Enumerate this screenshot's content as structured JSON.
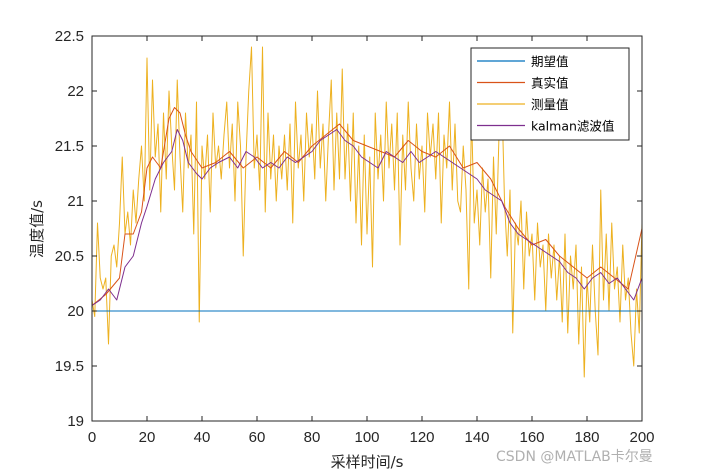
{
  "chart_data": {
    "type": "line",
    "xlabel": "采样时间/s",
    "ylabel": "温度值/s",
    "xlim": [
      0,
      200
    ],
    "ylim": [
      19,
      22.5
    ],
    "xticks": [
      0,
      20,
      40,
      60,
      80,
      100,
      120,
      140,
      160,
      180,
      200
    ],
    "yticks": [
      19,
      19.5,
      20,
      20.5,
      21,
      21.5,
      22,
      22.5
    ],
    "grid": false,
    "legend_position": "top-right",
    "series": [
      {
        "name": "期望值",
        "color": "#0072BD",
        "points": [
          [
            0,
            20
          ],
          [
            200,
            20
          ]
        ]
      },
      {
        "name": "真实值",
        "color": "#D95319",
        "points": [
          [
            0,
            20.05
          ],
          [
            5,
            20.15
          ],
          [
            10,
            20.3
          ],
          [
            12,
            20.7
          ],
          [
            15,
            20.7
          ],
          [
            18,
            20.9
          ],
          [
            20,
            21.3
          ],
          [
            22,
            21.4
          ],
          [
            25,
            21.3
          ],
          [
            28,
            21.75
          ],
          [
            30,
            21.85
          ],
          [
            32,
            21.8
          ],
          [
            34,
            21.6
          ],
          [
            36,
            21.45
          ],
          [
            40,
            21.3
          ],
          [
            45,
            21.35
          ],
          [
            50,
            21.45
          ],
          [
            55,
            21.3
          ],
          [
            60,
            21.4
          ],
          [
            65,
            21.3
          ],
          [
            70,
            21.45
          ],
          [
            75,
            21.35
          ],
          [
            80,
            21.5
          ],
          [
            85,
            21.6
          ],
          [
            90,
            21.7
          ],
          [
            95,
            21.55
          ],
          [
            100,
            21.5
          ],
          [
            105,
            21.45
          ],
          [
            110,
            21.4
          ],
          [
            115,
            21.55
          ],
          [
            120,
            21.45
          ],
          [
            125,
            21.4
          ],
          [
            130,
            21.5
          ],
          [
            135,
            21.3
          ],
          [
            140,
            21.35
          ],
          [
            145,
            21.2
          ],
          [
            150,
            20.95
          ],
          [
            155,
            20.75
          ],
          [
            160,
            20.6
          ],
          [
            165,
            20.65
          ],
          [
            170,
            20.5
          ],
          [
            175,
            20.4
          ],
          [
            180,
            20.3
          ],
          [
            185,
            20.4
          ],
          [
            190,
            20.3
          ],
          [
            195,
            20.2
          ],
          [
            200,
            20.75
          ]
        ]
      },
      {
        "name": "测量值",
        "color": "#EDB120",
        "points": [
          [
            0,
            20.1
          ],
          [
            1,
            19.95
          ],
          [
            2,
            20.8
          ],
          [
            3,
            20.3
          ],
          [
            4,
            20.2
          ],
          [
            5,
            20.3
          ],
          [
            6,
            19.7
          ],
          [
            7,
            20.5
          ],
          [
            8,
            20.6
          ],
          [
            9,
            20.4
          ],
          [
            10,
            20.8
          ],
          [
            11,
            21.4
          ],
          [
            12,
            20.7
          ],
          [
            13,
            20.9
          ],
          [
            14,
            20.6
          ],
          [
            15,
            21.1
          ],
          [
            16,
            20.8
          ],
          [
            17,
            21.2
          ],
          [
            18,
            21.5
          ],
          [
            19,
            21.0
          ],
          [
            20,
            22.3
          ],
          [
            21,
            21.1
          ],
          [
            22,
            22.1
          ],
          [
            23,
            21.4
          ],
          [
            24,
            21.7
          ],
          [
            25,
            20.9
          ],
          [
            26,
            21.8
          ],
          [
            27,
            21.2
          ],
          [
            28,
            22.0
          ],
          [
            29,
            21.5
          ],
          [
            30,
            21.1
          ],
          [
            31,
            22.1
          ],
          [
            32,
            21.4
          ],
          [
            33,
            20.9
          ],
          [
            34,
            21.8
          ],
          [
            35,
            21.3
          ],
          [
            36,
            21.6
          ],
          [
            37,
            20.7
          ],
          [
            38,
            21.9
          ],
          [
            39,
            19.9
          ],
          [
            40,
            21.5
          ],
          [
            41,
            21.2
          ],
          [
            42,
            21.6
          ],
          [
            43,
            20.9
          ],
          [
            44,
            21.8
          ],
          [
            45,
            21.3
          ],
          [
            46,
            21.5
          ],
          [
            47,
            21.2
          ],
          [
            48,
            21.6
          ],
          [
            49,
            21.9
          ],
          [
            50,
            21.3
          ],
          [
            51,
            21.7
          ],
          [
            52,
            21.0
          ],
          [
            53,
            21.9
          ],
          [
            54,
            21.5
          ],
          [
            55,
            20.5
          ],
          [
            56,
            21.4
          ],
          [
            57,
            22.0
          ],
          [
            58,
            22.4
          ],
          [
            59,
            21.3
          ],
          [
            60,
            21.6
          ],
          [
            61,
            21.1
          ],
          [
            62,
            22.4
          ],
          [
            63,
            20.9
          ],
          [
            64,
            21.8
          ],
          [
            65,
            21.2
          ],
          [
            66,
            21.6
          ],
          [
            67,
            21.0
          ],
          [
            68,
            21.5
          ],
          [
            69,
            21.2
          ],
          [
            70,
            21.6
          ],
          [
            71,
            21.1
          ],
          [
            72,
            21.7
          ],
          [
            73,
            20.8
          ],
          [
            74,
            21.9
          ],
          [
            75,
            21.3
          ],
          [
            76,
            21.6
          ],
          [
            77,
            21.0
          ],
          [
            78,
            21.8
          ],
          [
            79,
            21.4
          ],
          [
            80,
            21.7
          ],
          [
            81,
            21.2
          ],
          [
            82,
            22.0
          ],
          [
            83,
            21.3
          ],
          [
            84,
            21.7
          ],
          [
            85,
            21.0
          ],
          [
            86,
            21.6
          ],
          [
            87,
            22.1
          ],
          [
            88,
            21.1
          ],
          [
            89,
            21.8
          ],
          [
            90,
            21.2
          ],
          [
            91,
            22.2
          ],
          [
            92,
            21.2
          ],
          [
            93,
            21.7
          ],
          [
            94,
            21.0
          ],
          [
            95,
            21.8
          ],
          [
            96,
            20.8
          ],
          [
            97,
            21.5
          ],
          [
            98,
            20.6
          ],
          [
            99,
            21.6
          ],
          [
            100,
            20.7
          ],
          [
            101,
            21.4
          ],
          [
            102,
            20.4
          ],
          [
            103,
            21.8
          ],
          [
            104,
            21.2
          ],
          [
            105,
            21.6
          ],
          [
            106,
            21.0
          ],
          [
            107,
            21.9
          ],
          [
            108,
            21.3
          ],
          [
            109,
            21.7
          ],
          [
            110,
            21.1
          ],
          [
            111,
            21.8
          ],
          [
            112,
            20.6
          ],
          [
            113,
            21.6
          ],
          [
            114,
            21.1
          ],
          [
            115,
            21.9
          ],
          [
            116,
            21.3
          ],
          [
            117,
            21.0
          ],
          [
            118,
            21.7
          ],
          [
            119,
            21.2
          ],
          [
            120,
            21.5
          ],
          [
            121,
            20.9
          ],
          [
            122,
            21.8
          ],
          [
            123,
            21.4
          ],
          [
            124,
            21.7
          ],
          [
            125,
            21.2
          ],
          [
            126,
            21.8
          ],
          [
            127,
            20.8
          ],
          [
            128,
            21.6
          ],
          [
            129,
            21.3
          ],
          [
            130,
            21.9
          ],
          [
            131,
            21.1
          ],
          [
            132,
            21.7
          ],
          [
            133,
            21.0
          ],
          [
            134,
            20.9
          ],
          [
            135,
            21.5
          ],
          [
            136,
            21.1
          ],
          [
            137,
            20.2
          ],
          [
            138,
            21.8
          ],
          [
            139,
            20.8
          ],
          [
            140,
            21.1
          ],
          [
            141,
            20.6
          ],
          [
            142,
            21.3
          ],
          [
            143,
            20.9
          ],
          [
            144,
            21.2
          ],
          [
            145,
            20.3
          ],
          [
            146,
            21.4
          ],
          [
            147,
            20.7
          ],
          [
            148,
            21.6
          ],
          [
            149,
            22.0
          ],
          [
            150,
            21.0
          ],
          [
            151,
            20.5
          ],
          [
            152,
            21.1
          ],
          [
            153,
            19.8
          ],
          [
            154,
            20.8
          ],
          [
            155,
            20.6
          ],
          [
            156,
            21.0
          ],
          [
            157,
            20.2
          ],
          [
            158,
            20.9
          ],
          [
            159,
            20.5
          ],
          [
            160,
            20.7
          ],
          [
            161,
            20.1
          ],
          [
            162,
            20.8
          ],
          [
            163,
            20.4
          ],
          [
            164,
            20.6
          ],
          [
            165,
            20.0
          ],
          [
            166,
            20.7
          ],
          [
            167,
            20.3
          ],
          [
            168,
            20.6
          ],
          [
            169,
            20.1
          ],
          [
            170,
            20.5
          ],
          [
            171,
            19.9
          ],
          [
            172,
            20.7
          ],
          [
            173,
            19.8
          ],
          [
            174,
            20.5
          ],
          [
            175,
            20.2
          ],
          [
            176,
            20.6
          ],
          [
            177,
            19.7
          ],
          [
            178,
            20.4
          ],
          [
            179,
            19.4
          ],
          [
            180,
            20.3
          ],
          [
            181,
            19.9
          ],
          [
            182,
            20.6
          ],
          [
            183,
            20.0
          ],
          [
            184,
            19.6
          ],
          [
            185,
            21.1
          ],
          [
            186,
            20.1
          ],
          [
            187,
            20.7
          ],
          [
            188,
            20.0
          ],
          [
            189,
            20.8
          ],
          [
            190,
            20.2
          ],
          [
            191,
            20.4
          ],
          [
            192,
            19.9
          ],
          [
            193,
            20.6
          ],
          [
            194,
            20.1
          ],
          [
            195,
            20.3
          ],
          [
            196,
            19.8
          ],
          [
            197,
            19.5
          ],
          [
            198,
            20.2
          ],
          [
            199,
            19.8
          ],
          [
            200,
            20.8
          ]
        ]
      },
      {
        "name": "kalman滤波值",
        "color": "#7E2F8E",
        "points": [
          [
            0,
            20.05
          ],
          [
            3,
            20.1
          ],
          [
            6,
            20.2
          ],
          [
            9,
            20.1
          ],
          [
            12,
            20.4
          ],
          [
            15,
            20.5
          ],
          [
            18,
            20.8
          ],
          [
            20,
            20.95
          ],
          [
            23,
            21.2
          ],
          [
            26,
            21.35
          ],
          [
            29,
            21.45
          ],
          [
            31,
            21.65
          ],
          [
            33,
            21.55
          ],
          [
            35,
            21.35
          ],
          [
            38,
            21.25
          ],
          [
            40,
            21.2
          ],
          [
            43,
            21.3
          ],
          [
            46,
            21.35
          ],
          [
            50,
            21.4
          ],
          [
            53,
            21.3
          ],
          [
            56,
            21.45
          ],
          [
            59,
            21.4
          ],
          [
            62,
            21.3
          ],
          [
            65,
            21.35
          ],
          [
            68,
            21.3
          ],
          [
            71,
            21.4
          ],
          [
            74,
            21.35
          ],
          [
            77,
            21.4
          ],
          [
            80,
            21.45
          ],
          [
            83,
            21.55
          ],
          [
            86,
            21.6
          ],
          [
            89,
            21.65
          ],
          [
            92,
            21.55
          ],
          [
            95,
            21.5
          ],
          [
            98,
            21.4
          ],
          [
            101,
            21.35
          ],
          [
            104,
            21.3
          ],
          [
            107,
            21.45
          ],
          [
            110,
            21.4
          ],
          [
            113,
            21.35
          ],
          [
            116,
            21.45
          ],
          [
            119,
            21.35
          ],
          [
            122,
            21.4
          ],
          [
            125,
            21.45
          ],
          [
            128,
            21.4
          ],
          [
            131,
            21.35
          ],
          [
            134,
            21.3
          ],
          [
            137,
            21.25
          ],
          [
            140,
            21.2
          ],
          [
            143,
            21.1
          ],
          [
            146,
            21.05
          ],
          [
            149,
            21.0
          ],
          [
            152,
            20.8
          ],
          [
            155,
            20.7
          ],
          [
            158,
            20.65
          ],
          [
            161,
            20.6
          ],
          [
            164,
            20.55
          ],
          [
            167,
            20.5
          ],
          [
            170,
            20.45
          ],
          [
            173,
            20.35
          ],
          [
            176,
            20.3
          ],
          [
            179,
            20.2
          ],
          [
            182,
            20.3
          ],
          [
            185,
            20.35
          ],
          [
            188,
            20.25
          ],
          [
            191,
            20.3
          ],
          [
            194,
            20.2
          ],
          [
            197,
            20.1
          ],
          [
            200,
            20.3
          ]
        ]
      }
    ]
  },
  "watermark": "CSDN @MATLAB卡尔曼"
}
